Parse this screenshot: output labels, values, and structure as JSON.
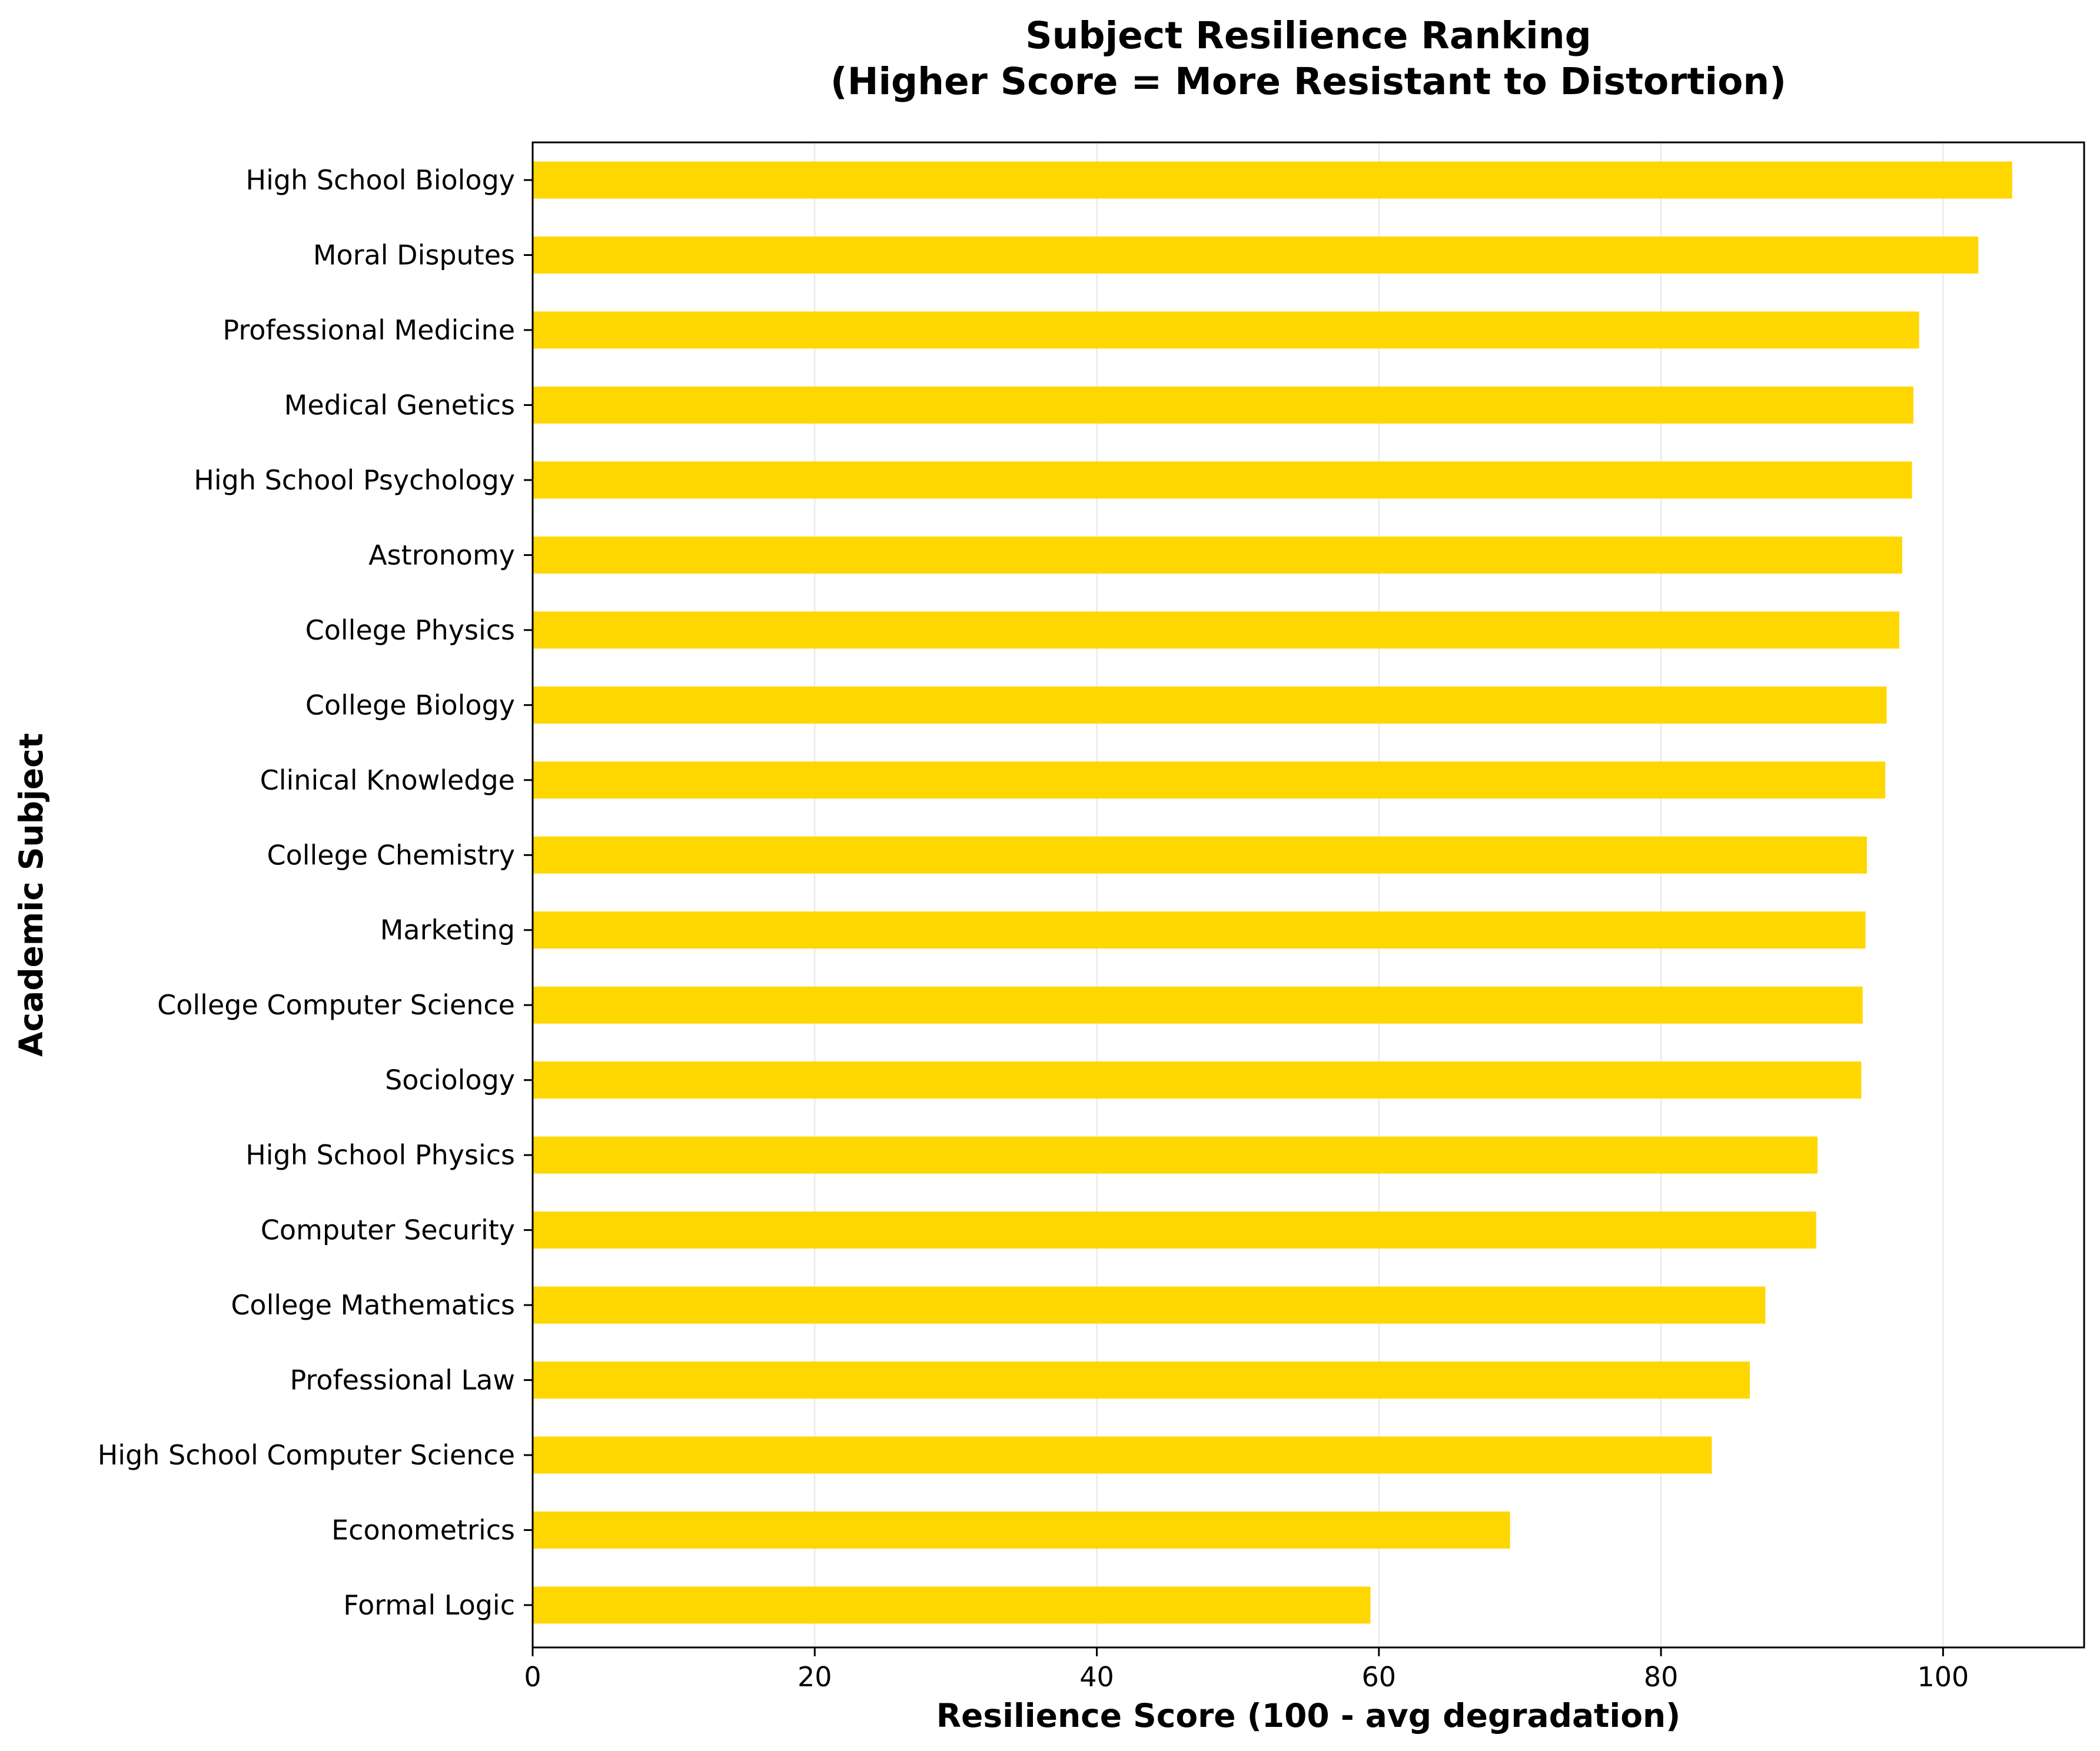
{
  "chart_data": {
    "type": "bar",
    "orientation": "horizontal",
    "title": "Subject Resilience Ranking",
    "subtitle": "(Higher Score = More Resistant to Distortion)",
    "xlabel": "Resilience Score (100 - avg degradation)",
    "ylabel": "Academic Subject",
    "xlim": [
      0,
      110
    ],
    "xticks": [
      0,
      20,
      40,
      60,
      80,
      100
    ],
    "grid": "vertical",
    "legend": "none",
    "bar_color": "#FFD700",
    "categories": [
      "High School Biology",
      "Moral Disputes",
      "Professional Medicine",
      "Medical Genetics",
      "High School Psychology",
      "Astronomy",
      "College Physics",
      "College Biology",
      "Clinical Knowledge",
      "College Chemistry",
      "Marketing",
      "College Computer Science",
      "Sociology",
      "High School Physics",
      "Computer Security",
      "College Mathematics",
      "Professional Law",
      "High School Computer Science",
      "Econometrics",
      "Formal Logic"
    ],
    "values": [
      104.9,
      102.5,
      98.3,
      97.9,
      97.8,
      97.1,
      96.9,
      96.0,
      95.9,
      94.6,
      94.5,
      94.3,
      94.2,
      91.1,
      91.0,
      87.4,
      86.3,
      83.6,
      69.3,
      59.4
    ]
  }
}
